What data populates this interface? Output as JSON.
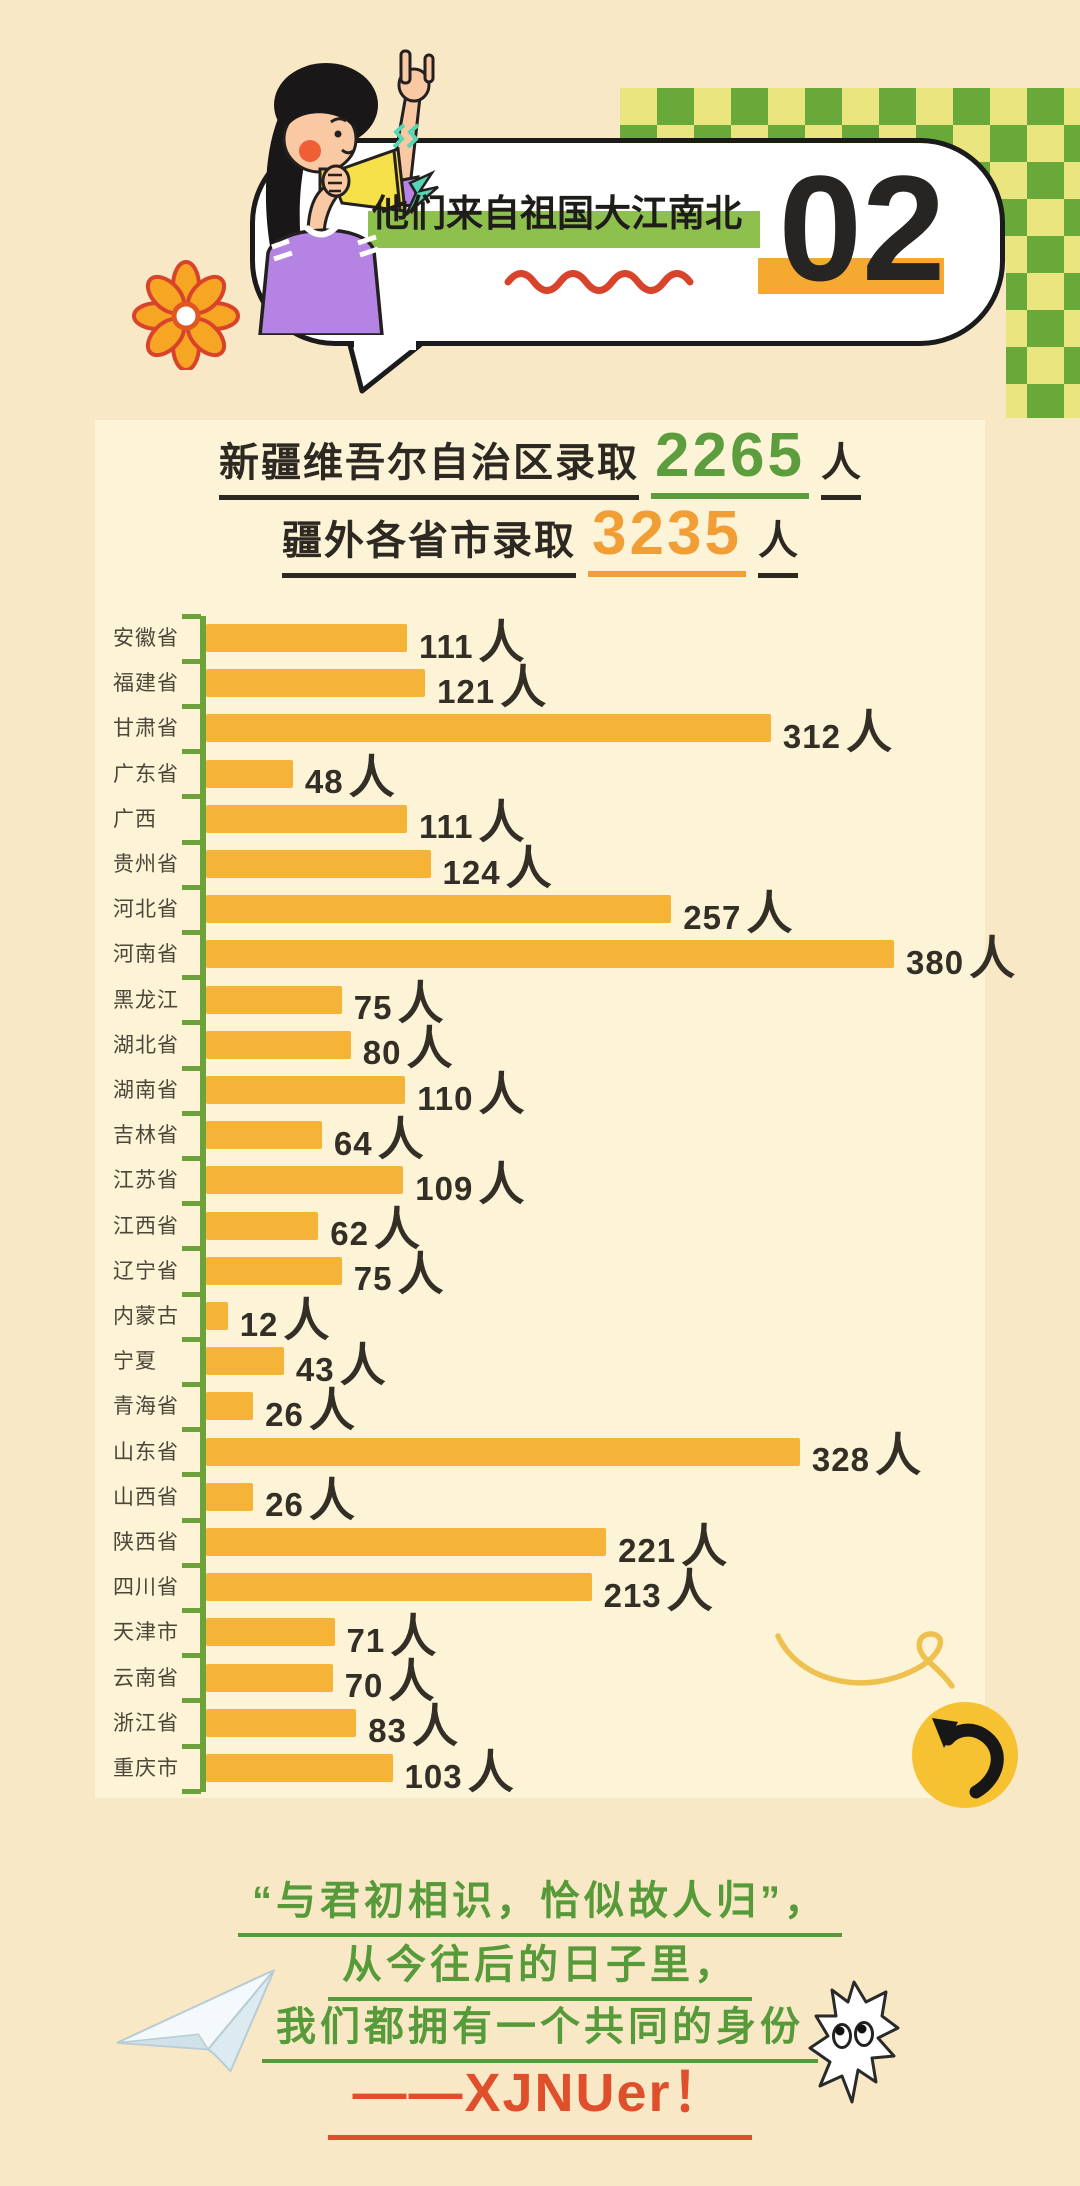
{
  "header": {
    "bubble_title": "他们来自祖国大江南北",
    "section_number": "02",
    "decor_colors": {
      "checker_green": "#69a93a",
      "checker_yellow": "#eae57e",
      "highlight_green": "#8ec04d",
      "squiggle_red": "#d8432c",
      "number_block_orange": "#f5a930"
    }
  },
  "summary": {
    "line1_prefix": "新疆维吾尔自治区录取",
    "line1_value": "2265",
    "line1_suffix": "人",
    "line1_value_color": "#5c9e3d",
    "line2_prefix": "疆外各省市录取",
    "line2_value": "3235",
    "line2_suffix": "人",
    "line2_value_color": "#f19e37"
  },
  "chart_data": {
    "type": "bar",
    "orientation": "horizontal",
    "unit": "人",
    "categories": [
      "安徽省",
      "福建省",
      "甘肃省",
      "广东省",
      "广西",
      "贵州省",
      "河北省",
      "河南省",
      "黑龙江",
      "湖北省",
      "湖南省",
      "吉林省",
      "江苏省",
      "江西省",
      "辽宁省",
      "内蒙古",
      "宁夏",
      "青海省",
      "山东省",
      "山西省",
      "陕西省",
      "四川省",
      "天津市",
      "云南省",
      "浙江省",
      "重庆市"
    ],
    "values": [
      111,
      121,
      312,
      48,
      111,
      124,
      257,
      380,
      75,
      80,
      110,
      64,
      109,
      62,
      75,
      12,
      43,
      26,
      328,
      26,
      221,
      213,
      71,
      70,
      83,
      103
    ],
    "xlim": [
      0,
      380
    ],
    "grid": false,
    "value_labels": true,
    "legend": "none",
    "bar_color": "#f5b338",
    "axis_color": "#6da23b"
  },
  "footer": {
    "quote_line1": "“与君初相识，恰似故人归”，",
    "quote_line2": "从今往后的日子里，",
    "quote_line3": "我们都拥有一个共同的身份",
    "quote_line4": "——XJNUer！",
    "quote_color": "#579a39",
    "signature_color": "#e04f2b"
  }
}
